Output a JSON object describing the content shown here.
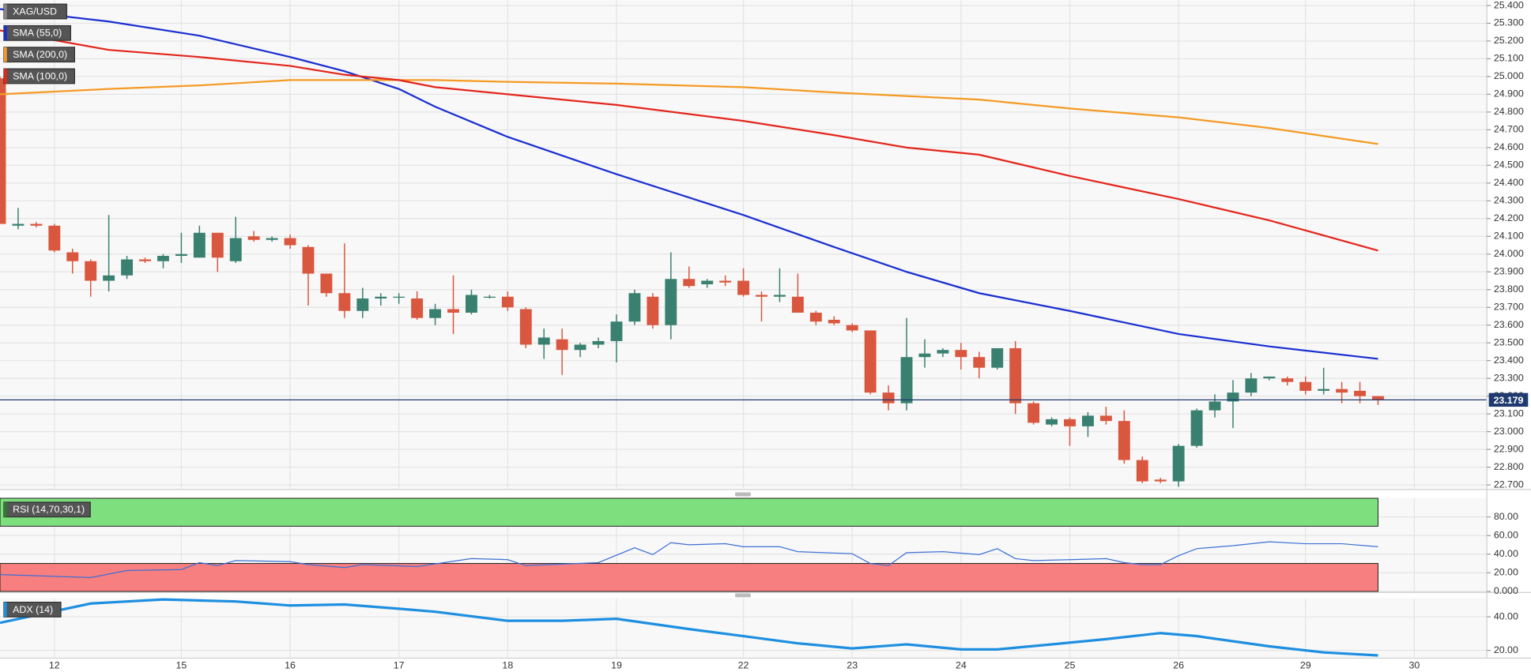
{
  "chart_data": [
    {
      "type": "candlestick",
      "title": "XAG/USD",
      "up_color": "#3a8070",
      "down_color": "#d9573f",
      "open": [
        24.99,
        24.16,
        24.17,
        24.16,
        24.01,
        23.96,
        23.85,
        23.88,
        23.97,
        23.96,
        23.99,
        23.98,
        24.12,
        23.96,
        24.1,
        24.08,
        24.09,
        24.04,
        23.89,
        23.78,
        23.68,
        23.75,
        23.76,
        23.75,
        23.64,
        23.69,
        23.67,
        23.76,
        23.76,
        23.69,
        23.49,
        23.52,
        23.46,
        23.49,
        23.51,
        23.62,
        23.76,
        23.6,
        23.86,
        23.83,
        23.85,
        23.85,
        23.77,
        23.76,
        23.76,
        23.67,
        23.63,
        23.6,
        23.57,
        23.22,
        23.16,
        23.42,
        23.44,
        23.46,
        23.42,
        23.36,
        23.47,
        23.16,
        23.04,
        23.07,
        23.03,
        23.09,
        23.06,
        22.84,
        22.73,
        22.72,
        22.92,
        23.12,
        23.17,
        23.22,
        23.3,
        23.3,
        23.28,
        23.23,
        23.24,
        23.23,
        23.2
      ],
      "high": [
        25.0,
        24.26,
        24.18,
        24.17,
        24.03,
        23.97,
        24.22,
        23.99,
        23.98,
        24.0,
        24.12,
        24.16,
        24.12,
        24.21,
        24.13,
        24.1,
        24.11,
        24.05,
        23.89,
        24.06,
        23.81,
        23.78,
        23.78,
        23.79,
        23.72,
        23.88,
        23.8,
        23.77,
        23.79,
        23.7,
        23.58,
        23.58,
        23.5,
        23.53,
        23.66,
        23.8,
        23.78,
        24.01,
        23.93,
        23.86,
        23.88,
        23.92,
        23.79,
        23.92,
        23.89,
        23.68,
        23.65,
        23.61,
        23.57,
        23.26,
        23.64,
        23.52,
        23.47,
        23.5,
        23.45,
        23.47,
        23.51,
        23.17,
        23.08,
        23.08,
        23.11,
        23.14,
        23.12,
        22.86,
        22.74,
        22.93,
        23.13,
        23.21,
        23.29,
        23.33,
        23.31,
        23.31,
        23.31,
        23.36,
        23.28,
        23.28,
        23.2
      ],
      "low": [
        24.17,
        24.14,
        24.15,
        24.01,
        23.89,
        23.76,
        23.79,
        23.86,
        23.95,
        23.92,
        23.95,
        23.98,
        23.9,
        23.95,
        24.07,
        24.07,
        24.03,
        23.71,
        23.76,
        23.64,
        23.64,
        23.71,
        23.72,
        23.63,
        23.6,
        23.55,
        23.66,
        23.75,
        23.68,
        23.47,
        23.41,
        23.32,
        23.42,
        23.47,
        23.39,
        23.6,
        23.58,
        23.52,
        23.81,
        23.81,
        23.82,
        23.76,
        23.62,
        23.73,
        23.67,
        23.6,
        23.6,
        23.56,
        23.21,
        23.12,
        23.12,
        23.36,
        23.42,
        23.35,
        23.3,
        23.35,
        23.1,
        23.04,
        23.03,
        22.92,
        22.97,
        23.04,
        22.82,
        22.71,
        22.71,
        22.69,
        22.91,
        23.08,
        23.02,
        23.2,
        23.29,
        23.26,
        23.21,
        23.21,
        23.16,
        23.16,
        23.15
      ],
      "close": [
        24.17,
        24.17,
        24.16,
        24.02,
        23.96,
        23.85,
        23.88,
        23.97,
        23.96,
        23.99,
        24.0,
        24.12,
        23.98,
        24.09,
        24.08,
        24.09,
        24.05,
        23.89,
        23.78,
        23.68,
        23.75,
        23.76,
        23.76,
        23.64,
        23.69,
        23.67,
        23.77,
        23.76,
        23.7,
        23.49,
        23.53,
        23.46,
        23.49,
        23.51,
        23.62,
        23.78,
        23.6,
        23.86,
        23.82,
        23.85,
        23.84,
        23.77,
        23.76,
        23.77,
        23.67,
        23.62,
        23.61,
        23.57,
        23.22,
        23.16,
        23.42,
        23.44,
        23.46,
        23.42,
        23.36,
        23.47,
        23.16,
        23.05,
        23.07,
        23.03,
        23.09,
        23.06,
        22.84,
        22.72,
        22.72,
        22.92,
        23.12,
        23.17,
        23.22,
        23.3,
        23.31,
        23.28,
        23.23,
        23.24,
        23.22,
        23.2,
        23.18
      ],
      "overlays": [
        {
          "name": "SMA (55,0)",
          "color": "#1a2fd0",
          "x": [
            0,
            6,
            11,
            16,
            19,
            22,
            24,
            28,
            34,
            41,
            46,
            50,
            54,
            59,
            65,
            70,
            76
          ],
          "values": [
            25.38,
            25.31,
            25.23,
            25.11,
            25.03,
            24.93,
            24.83,
            24.66,
            24.45,
            24.22,
            24.04,
            23.9,
            23.78,
            23.68,
            23.55,
            23.48,
            23.41
          ]
        },
        {
          "name": "SMA (200,0)",
          "color": "#f59a23",
          "x": [
            0,
            6,
            11,
            16,
            19,
            22,
            24,
            28,
            34,
            41,
            46,
            50,
            54,
            59,
            65,
            70,
            76
          ],
          "values": [
            24.9,
            24.93,
            24.95,
            24.98,
            24.98,
            24.98,
            24.98,
            24.97,
            24.96,
            24.94,
            24.91,
            24.89,
            24.87,
            24.82,
            24.77,
            24.71,
            24.62
          ]
        },
        {
          "name": "SMA (100,0)",
          "color": "#e3261c",
          "x": [
            0,
            6,
            11,
            16,
            19,
            22,
            24,
            28,
            34,
            41,
            46,
            50,
            54,
            59,
            65,
            70,
            76
          ],
          "values": [
            25.26,
            25.15,
            25.11,
            25.06,
            25.01,
            24.98,
            24.94,
            24.9,
            24.84,
            24.75,
            24.67,
            24.6,
            24.56,
            24.44,
            24.31,
            24.19,
            24.02
          ]
        }
      ],
      "last_price": 23.179,
      "last_price_color": "#1f3a6e",
      "xlim": [
        0,
        82
      ],
      "ylim": [
        22.68,
        25.43
      ],
      "grid": true,
      "xticks": [
        {
          "value": 3,
          "label": "12"
        },
        {
          "value": 10,
          "label": "15"
        },
        {
          "value": 16,
          "label": "16"
        },
        {
          "value": 22,
          "label": "17"
        },
        {
          "value": 28,
          "label": "18"
        },
        {
          "value": 34,
          "label": "19"
        },
        {
          "value": 41,
          "label": "22"
        },
        {
          "value": 47,
          "label": "23"
        },
        {
          "value": 53,
          "label": "24"
        },
        {
          "value": 59,
          "label": "25"
        },
        {
          "value": 65,
          "label": "26"
        },
        {
          "value": 72,
          "label": "29"
        },
        {
          "value": 78,
          "label": "30"
        }
      ],
      "yticks": [
        {
          "value": 25.4,
          "label": "25.400"
        },
        {
          "value": 25.3,
          "label": "25.300"
        },
        {
          "value": 25.2,
          "label": "25.200"
        },
        {
          "value": 25.1,
          "label": "25.100"
        },
        {
          "value": 25.0,
          "label": "25.000"
        },
        {
          "value": 24.9,
          "label": "24.900"
        },
        {
          "value": 24.8,
          "label": "24.800"
        },
        {
          "value": 24.7,
          "label": "24.700"
        },
        {
          "value": 24.6,
          "label": "24.600"
        },
        {
          "value": 24.5,
          "label": "24.500"
        },
        {
          "value": 24.4,
          "label": "24.400"
        },
        {
          "value": 24.3,
          "label": "24.300"
        },
        {
          "value": 24.2,
          "label": "24.200"
        },
        {
          "value": 24.1,
          "label": "24.100"
        },
        {
          "value": 24.0,
          "label": "24.000"
        },
        {
          "value": 23.9,
          "label": "23.900"
        },
        {
          "value": 23.8,
          "label": "23.800"
        },
        {
          "value": 23.7,
          "label": "23.700"
        },
        {
          "value": 23.6,
          "label": "23.600"
        },
        {
          "value": 23.5,
          "label": "23.500"
        },
        {
          "value": 23.4,
          "label": "23.400"
        },
        {
          "value": 23.3,
          "label": "23.300"
        },
        {
          "value": 23.2,
          "label": "23.200"
        },
        {
          "value": 23.1,
          "label": "23.100"
        },
        {
          "value": 23.0,
          "label": "23.000"
        },
        {
          "value": 22.9,
          "label": "22.900"
        },
        {
          "value": 22.8,
          "label": "22.800"
        },
        {
          "value": 22.7,
          "label": "22.700"
        }
      ]
    },
    {
      "type": "line",
      "title": "RSI (14,70,30,1)",
      "bands": [
        {
          "from": 70,
          "to": 100,
          "color": "#7ddf7d"
        },
        {
          "from": 0,
          "to": 30,
          "color": "#f77f7f"
        }
      ],
      "series": [
        {
          "color": "#3d6fd6",
          "x": [
            0,
            5,
            7,
            10,
            11,
            12,
            13,
            16,
            17,
            19,
            20,
            23,
            26,
            28,
            29,
            33,
            35,
            36,
            37,
            38,
            40,
            41,
            43,
            44,
            47,
            48,
            49,
            50,
            52,
            54,
            55,
            56,
            57,
            59,
            61,
            62,
            63,
            64,
            65,
            66,
            68,
            70,
            72,
            74,
            76
          ],
          "values": [
            18.1,
            14.9,
            22.4,
            23.5,
            30.9,
            27.7,
            33.1,
            32.0,
            28.8,
            25.6,
            28.8,
            26.7,
            35.2,
            34.1,
            27.7,
            30.9,
            46.9,
            39.5,
            52.3,
            50.1,
            51.2,
            48.0,
            48.0,
            42.7,
            40.5,
            29.9,
            27.7,
            41.6,
            42.7,
            39.5,
            45.9,
            35.2,
            33.1,
            34.1,
            35.2,
            30.9,
            28.8,
            28.8,
            38.4,
            45.9,
            49.1,
            53.3,
            51.2,
            51.2,
            48.0
          ]
        }
      ],
      "xlim": [
        0,
        82
      ],
      "ylim": [
        0,
        100
      ],
      "yticks": [
        {
          "value": 80,
          "label": "80.00"
        },
        {
          "value": 60,
          "label": "60.00"
        },
        {
          "value": 40,
          "label": "40.00"
        },
        {
          "value": 20,
          "label": "20.00"
        },
        {
          "value": 0,
          "label": "0.000"
        }
      ]
    },
    {
      "type": "line",
      "title": "ADX (14)",
      "series": [
        {
          "color": "#1e8fe0",
          "x": [
            0,
            5,
            9,
            13,
            16,
            19,
            22,
            24,
            28,
            31,
            34,
            38,
            41,
            44,
            47,
            50,
            53,
            55,
            58,
            61,
            64,
            66,
            70,
            73,
            76
          ],
          "values": [
            36.4,
            47.9,
            50.3,
            49.1,
            46.7,
            47.3,
            44.8,
            43.0,
            37.6,
            37.6,
            38.8,
            32.7,
            28.5,
            24.2,
            21.2,
            23.6,
            20.6,
            20.6,
            23.6,
            26.7,
            30.3,
            28.5,
            22.4,
            18.8,
            17.0
          ]
        }
      ],
      "xlim": [
        0,
        82
      ],
      "ylim": [
        16,
        51
      ],
      "yticks": [
        {
          "value": 40,
          "label": "40.00"
        },
        {
          "value": 20,
          "label": "20.00"
        }
      ]
    }
  ]
}
